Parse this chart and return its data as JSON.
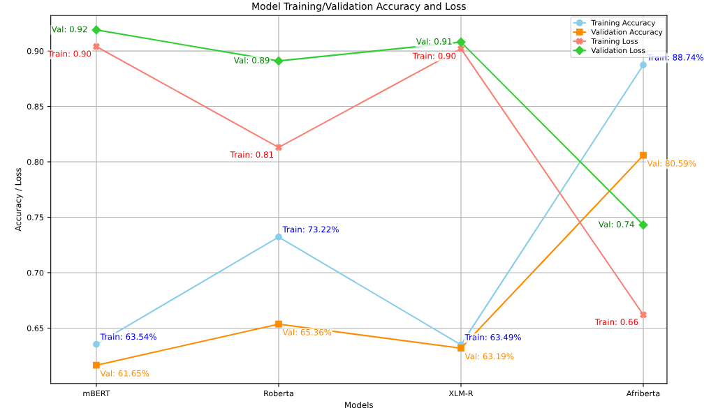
{
  "chart_data": {
    "type": "line",
    "title": "Model Training/Validation Accuracy and Loss",
    "xlabel": "Models",
    "ylabel": "Accuracy / Loss",
    "categories": [
      "mBERT",
      "Roberta",
      "XLM-R",
      "Afriberta"
    ],
    "series": [
      {
        "name": "Training Accuracy",
        "color": "#87ceeb",
        "marker": "circle",
        "values": [
          0.6354,
          0.7322,
          0.6349,
          0.8874
        ],
        "value_labels": [
          "Train: 63.54%",
          "Train: 73.22%",
          "Train: 63.49%",
          "Train: 88.74%"
        ]
      },
      {
        "name": "Validation Accuracy",
        "color": "#ff8c00",
        "marker": "square",
        "values": [
          0.6165,
          0.6536,
          0.6319,
          0.8059
        ],
        "value_labels": [
          "Val: 61.65%",
          "Val: 65.36%",
          "Val: 63.19%",
          "Val: 80.59%"
        ]
      },
      {
        "name": "Training Loss",
        "color": "#fa8072",
        "marker": "cross",
        "values": [
          0.904,
          0.813,
          0.902,
          0.662
        ],
        "value_labels": [
          "Train: 0.90",
          "Train: 0.81",
          "Train: 0.90",
          "Train: 0.66"
        ]
      },
      {
        "name": "Validation Loss",
        "color": "#32cd32",
        "marker": "diamond",
        "values": [
          0.919,
          0.891,
          0.908,
          0.743
        ],
        "value_labels": [
          "Val: 0.92",
          "Val: 0.89",
          "Val: 0.91",
          "Val: 0.74"
        ]
      }
    ],
    "ylim": [
      0.6,
      0.932
    ],
    "yticks": [
      {
        "value": 0.65,
        "label": "0.65"
      },
      {
        "value": 0.7,
        "label": "0.70"
      },
      {
        "value": 0.75,
        "label": "0.75"
      },
      {
        "value": 0.8,
        "label": "0.80"
      },
      {
        "value": 0.85,
        "label": "0.85"
      },
      {
        "value": 0.9,
        "label": "0.90"
      }
    ],
    "grid": true,
    "legend": "top right"
  }
}
